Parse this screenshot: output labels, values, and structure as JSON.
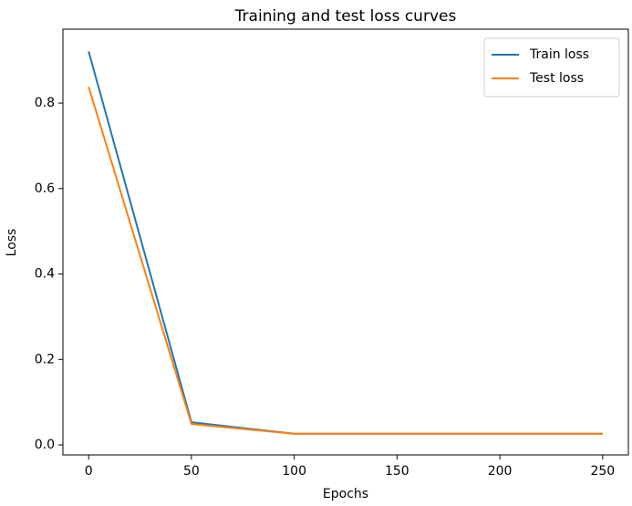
{
  "chart_data": {
    "type": "line",
    "title": "Training and test loss curves",
    "xlabel": "Epochs",
    "ylabel": "Loss",
    "x": [
      0,
      50,
      100,
      150,
      200,
      250
    ],
    "series": [
      {
        "name": "Train loss",
        "color": "#1f77b4",
        "values": [
          0.921,
          0.053,
          0.026,
          0.026,
          0.026,
          0.026
        ]
      },
      {
        "name": "Test loss",
        "color": "#ff7f0e",
        "values": [
          0.838,
          0.049,
          0.026,
          0.026,
          0.026,
          0.026
        ]
      }
    ],
    "xlim": [
      -12.5,
      262.5
    ],
    "ylim": [
      -0.0235,
      0.973
    ],
    "xticks": [
      0,
      50,
      100,
      150,
      200,
      250
    ],
    "yticks": [
      {
        "value": 0,
        "label": "0.0"
      },
      0.2,
      0.4,
      0.6,
      0.8
    ],
    "legend": "upper right"
  }
}
